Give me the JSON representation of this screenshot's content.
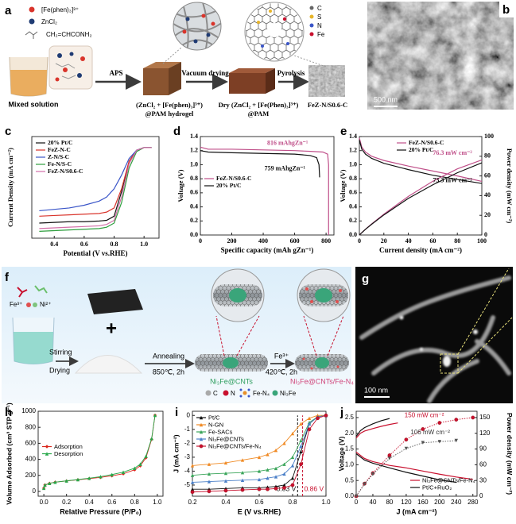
{
  "panel_labels": [
    "a",
    "b",
    "c",
    "d",
    "e",
    "f",
    "g",
    "h",
    "i",
    "j"
  ],
  "scheme_a": {
    "reagents": [
      "[Fe(phen)₃]³⁺",
      "ZnCl₂",
      "CH₂=CHCONH₂"
    ],
    "arrows": [
      "APS",
      "Vacuum drying",
      "Pyrolysis"
    ],
    "stages": [
      "Mixed solution",
      "(ZnCl₂ + [Fe(phen)₃]³⁺)",
      "@PAM hydrogel",
      "Dry (ZnCl₂ + [Fe(Phen)₃]³⁺)",
      "@PAM",
      "FeZ-N/S0.6-C"
    ],
    "atoms": [
      "C",
      "S",
      "N",
      "Fe"
    ]
  },
  "image_b": {
    "scale_bar": "500 nm"
  },
  "scheme_f": {
    "ions": [
      "Fe³⁺",
      "Ni²⁺"
    ],
    "steps": [
      "Stirring",
      "Drying",
      "Annealing",
      "850℃, 2h",
      "Fe³⁺",
      "420℃, 2h"
    ],
    "products": [
      "Ni₃Fe@CNTs",
      "Ni₃Fe@CNTs/Fe-N₄"
    ],
    "legend": [
      "C",
      "N",
      "Fe-N₄",
      "Ni₃Fe"
    ]
  },
  "image_g": {
    "scale_bar": "100 nm"
  },
  "chart_data": [
    {
      "type": "line",
      "xlabel": "Potential (V vs.RHE)",
      "ylabel": "Current Density (mA cm⁻²)",
      "x": [
        0.3,
        0.4,
        0.5,
        0.6,
        0.7,
        0.75,
        0.8,
        0.85,
        0.9,
        0.95,
        1.0,
        1.05
      ],
      "xlim": [
        0.25,
        1.1
      ],
      "xticks": [
        0.4,
        0.6,
        0.8,
        {
          "value": 1,
          "label": "1.0"
        }
      ],
      "ylim": [
        -6.6,
        0.8
      ],
      "legend": "upper left",
      "series": [
        {
          "name": "20% Pt/C",
          "color": "#111111",
          "values": [
            -5.5,
            -5.45,
            -5.4,
            -5.4,
            -5.35,
            -5.3,
            -5.0,
            -3.2,
            -1.0,
            -0.2,
            0,
            0
          ]
        },
        {
          "name": "FeZ-N-C",
          "color": "#d9342b",
          "values": [
            -5.0,
            -4.95,
            -4.9,
            -4.85,
            -4.8,
            -4.7,
            -4.4,
            -3.0,
            -1.0,
            -0.2,
            0,
            0
          ]
        },
        {
          "name": "Z-N/S-C",
          "color": "#3a55c8",
          "values": [
            -4.6,
            -4.5,
            -4.4,
            -4.2,
            -3.9,
            -3.6,
            -3.0,
            -2.0,
            -0.8,
            -0.2,
            0,
            0
          ]
        },
        {
          "name": "Fe-N/S-C",
          "color": "#2e9e3e",
          "values": [
            -6.1,
            -6.05,
            -6.0,
            -5.95,
            -5.9,
            -5.8,
            -5.5,
            -4.0,
            -1.5,
            -0.3,
            0,
            0
          ]
        },
        {
          "name": "FeZ-N/S0.6-C",
          "color": "#d36fa8",
          "values": [
            -5.9,
            -5.85,
            -5.8,
            -5.75,
            -5.7,
            -5.6,
            -5.3,
            -3.6,
            -1.2,
            -0.2,
            0,
            0
          ]
        }
      ]
    },
    {
      "type": "line",
      "xlabel": "Specific capacity (mAh gZn⁻¹)",
      "ylabel": "Voltage (V)",
      "xlim": [
        0,
        850
      ],
      "xticks": [
        0,
        200,
        400,
        600,
        800
      ],
      "ylim": [
        0,
        1.4
      ],
      "yticks": [
        {
          "value": 0,
          "label": "0.0"
        },
        0.2,
        0.4,
        0.6,
        0.8,
        {
          "value": 1,
          "label": "1.0"
        },
        1.2,
        1.4
      ],
      "legend": "center left",
      "annotations": [
        "816 mAhgZn⁻¹",
        "759 mAhgZn⁻¹"
      ],
      "series": [
        {
          "name": "FeZ-N/S0.6-C",
          "color": "#c0508a",
          "x": [
            0,
            50,
            200,
            400,
            600,
            700,
            780,
            810,
            816,
            816
          ],
          "values": [
            1.25,
            1.22,
            1.22,
            1.21,
            1.2,
            1.19,
            1.18,
            1.15,
            1.0,
            0
          ]
        },
        {
          "name": "20% Pt/C",
          "color": "#111111",
          "x": [
            0,
            50,
            200,
            400,
            600,
            700,
            740,
            755,
            759
          ],
          "values": [
            1.2,
            1.18,
            1.17,
            1.16,
            1.15,
            1.13,
            1.1,
            1.0,
            0.82
          ]
        }
      ]
    },
    {
      "type": "line",
      "xlabel": "Current density (mA cm⁻²)",
      "ylabel": "Voltage (V)",
      "y2label": "Power density (mW cm⁻²)",
      "x": [
        0,
        2,
        5,
        10,
        20,
        40,
        60,
        80,
        100
      ],
      "xlim": [
        0,
        100
      ],
      "xticks": [
        0,
        20,
        40,
        60,
        80,
        100
      ],
      "ylim": [
        0,
        1.4
      ],
      "yticks": [
        {
          "value": 0,
          "label": "0.0"
        },
        0.2,
        0.4,
        0.6,
        0.8,
        {
          "value": 1,
          "label": "1.0"
        },
        1.2,
        1.4
      ],
      "y2lim": [
        0,
        100
      ],
      "y2ticks": [
        0,
        20,
        40,
        60,
        80,
        100
      ],
      "legend": "upper center",
      "annotations": [
        "76.3 mW cm⁻²",
        "73.3 mW cm⁻²"
      ],
      "series": [
        {
          "name": "FeZ-N/S0.6-C",
          "color": "#c0508a",
          "values": [
            1.38,
            1.25,
            1.18,
            1.12,
            1.06,
            0.98,
            0.91,
            0.84,
            0.763
          ]
        },
        {
          "name": "20% Pt/C",
          "color": "#111111",
          "values": [
            1.35,
            1.22,
            1.15,
            1.09,
            1.02,
            0.93,
            0.85,
            0.79,
            0.733
          ]
        },
        {
          "color": "#c0508a",
          "axis": "y2",
          "values": [
            0,
            2.5,
            5.9,
            11.2,
            21.2,
            39.2,
            54.6,
            67.2,
            76.3
          ]
        },
        {
          "color": "#111111",
          "axis": "y2",
          "values": [
            0,
            2.4,
            5.8,
            10.9,
            20.4,
            37.2,
            51,
            63.2,
            73.3
          ]
        }
      ]
    },
    {
      "type": "line",
      "xlabel": "Relative Pressure (P/P₀)",
      "ylabel": "Volume Adsorbed (cm³ STP g⁻¹)",
      "x": [
        0,
        0.01,
        0.05,
        0.1,
        0.2,
        0.3,
        0.4,
        0.5,
        0.6,
        0.7,
        0.8,
        0.85,
        0.9,
        0.95,
        0.98
      ],
      "xlim": [
        -0.05,
        1.05
      ],
      "xticks": [
        {
          "value": 0,
          "label": "0.0"
        },
        0.2,
        0.4,
        0.6,
        0.8,
        {
          "value": 1,
          "label": "1.0"
        }
      ],
      "ylim": [
        -60,
        1000
      ],
      "yticks": [
        0,
        200,
        400,
        600,
        800,
        1000
      ],
      "legend": "center left",
      "series": [
        {
          "name": "Adsorption",
          "color": "#d9261c",
          "marker": "diamond",
          "values": [
            40,
            80,
            100,
            115,
            130,
            145,
            160,
            175,
            195,
            220,
            270,
            320,
            420,
            650,
            950
          ]
        },
        {
          "name": "Desorption",
          "color": "#27a84a",
          "marker": "triangle",
          "values": [
            40,
            80,
            100,
            115,
            132,
            148,
            165,
            185,
            210,
            240,
            290,
            340,
            440,
            660,
            950
          ]
        }
      ]
    },
    {
      "type": "line",
      "xlabel": "E (V vs.RHE)",
      "ylabel": "J (mA cm⁻²)",
      "x": [
        0.2,
        0.3,
        0.4,
        0.5,
        0.6,
        0.65,
        0.7,
        0.75,
        0.8,
        0.85,
        0.9,
        0.95,
        1.0
      ],
      "xlim": [
        0.2,
        1.0
      ],
      "xticks": [
        0.2,
        0.4,
        0.6,
        0.8,
        {
          "value": 1,
          "label": "1.0"
        }
      ],
      "ylim": [
        -5.8,
        0.3
      ],
      "yticks": [
        0,
        -1,
        -2,
        -3,
        -4,
        -5
      ],
      "legend": "upper left",
      "vlines": [
        {
          "value": 0.83,
          "label": "0.83 V",
          "color": "#111111"
        },
        {
          "value": 0.86,
          "label": "0.86 V",
          "color": "#c8102e"
        }
      ],
      "series": [
        {
          "name": "Pt/C",
          "color": "#111111",
          "marker": "triangle",
          "values": [
            -5.3,
            -5.3,
            -5.25,
            -5.2,
            -5.2,
            -5.15,
            -5.1,
            -5.0,
            -4.5,
            -2.6,
            -0.6,
            -0.1,
            0
          ]
        },
        {
          "name": "N-GN",
          "color": "#f08a24",
          "marker": "triangle",
          "values": [
            -3.6,
            -3.5,
            -3.4,
            -3.2,
            -3.0,
            -2.8,
            -2.5,
            -2.0,
            -1.3,
            -0.6,
            -0.2,
            0,
            0
          ]
        },
        {
          "name": "Fe-SACs",
          "color": "#3aa55a",
          "marker": "triangle",
          "values": [
            -4.3,
            -4.2,
            -4.15,
            -4.1,
            -4.0,
            -3.9,
            -3.8,
            -3.5,
            -3.0,
            -1.8,
            -0.5,
            -0.1,
            0
          ]
        },
        {
          "name": "Ni₃Fe@CNTs",
          "color": "#4a7fc8",
          "marker": "triangle",
          "values": [
            -4.8,
            -4.75,
            -4.7,
            -4.65,
            -4.6,
            -4.5,
            -4.4,
            -4.2,
            -3.6,
            -2.2,
            -0.6,
            -0.1,
            0
          ]
        },
        {
          "name": "Ni₃Fe@CNTs/Fe-N₄",
          "color": "#c8102e",
          "marker": "circle",
          "values": [
            -5.5,
            -5.45,
            -5.4,
            -5.35,
            -5.3,
            -5.3,
            -5.25,
            -5.2,
            -5.0,
            -3.5,
            -1.0,
            -0.2,
            0
          ]
        }
      ]
    },
    {
      "type": "line",
      "xlabel": "J (mA cm⁻²)",
      "ylabel": "Voltage (V)",
      "y2label": "Power density (mW cm⁻²)",
      "xlim": [
        0,
        290
      ],
      "xticks": [
        0,
        40,
        80,
        120,
        160,
        200,
        240,
        280
      ],
      "ylim": [
        0,
        2.7
      ],
      "yticks": [
        {
          "value": 0,
          "label": "0.0"
        },
        0.5,
        {
          "value": 1,
          "label": "1.0"
        },
        1.5,
        {
          "value": 2,
          "label": "2.0"
        },
        2.5
      ],
      "y2lim": [
        0,
        162
      ],
      "y2ticks": [
        0,
        30,
        60,
        90,
        120,
        150
      ],
      "legend": "lower right",
      "annotations": [
        "150 mW cm⁻²",
        "106 mW cm⁻²"
      ],
      "series": [
        {
          "color": "#c8102e",
          "x": [
            0,
            10,
            20,
            40,
            60,
            80,
            100
          ],
          "values": [
            1.85,
            2.0,
            2.07,
            2.15,
            2.22,
            2.28,
            2.33
          ]
        },
        {
          "name": "Ni₃Fe@CNTs/Fe-N₄",
          "color": "#c8102e",
          "x": [
            0,
            20,
            40,
            80,
            120,
            160,
            200,
            240,
            280
          ],
          "values": [
            1.4,
            1.2,
            1.1,
            0.98,
            0.9,
            0.8,
            0.7,
            0.61,
            0.536
          ]
        },
        {
          "color": "#c8102e",
          "axis": "y2",
          "marker": "circle",
          "x": [
            0,
            20,
            40,
            80,
            120,
            160,
            200,
            240,
            280
          ],
          "values": [
            0,
            24,
            44,
            78,
            108,
            128,
            140,
            146,
            150
          ]
        },
        {
          "color": "#111111",
          "x": [
            0,
            10,
            20,
            40,
            60,
            80
          ],
          "values": [
            1.9,
            2.08,
            2.18,
            2.3,
            2.4,
            2.47
          ]
        },
        {
          "name": "Pt/C+RuO₂",
          "color": "#111111",
          "x": [
            0,
            20,
            40,
            80,
            120,
            160,
            200,
            240
          ],
          "values": [
            1.35,
            1.15,
            1.05,
            0.9,
            0.76,
            0.64,
            0.52,
            0.442
          ]
        },
        {
          "color": "#555555",
          "axis": "y2",
          "marker": "tridown",
          "x": [
            0,
            20,
            40,
            80,
            120,
            160,
            200,
            240
          ],
          "values": [
            0,
            23,
            42,
            72,
            91,
            102,
            104,
            106
          ]
        }
      ]
    }
  ]
}
